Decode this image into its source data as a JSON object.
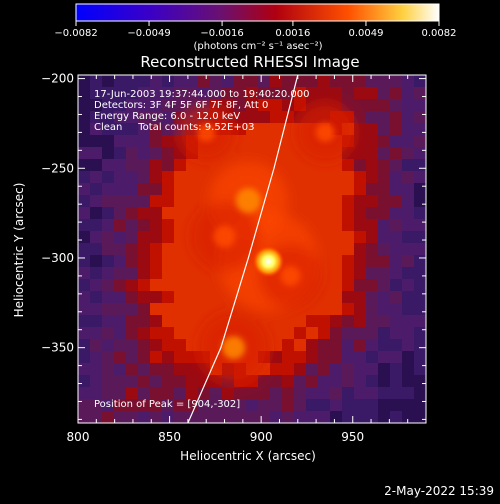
{
  "chart_data": {
    "type": "heatmap",
    "title": "Reconstructed RHESSI Image",
    "xlabel": "Heliocentric X (arcsec)",
    "ylabel": "Heliocentric Y (arcsec)",
    "xlim": [
      800,
      990
    ],
    "ylim": [
      -392,
      -198
    ],
    "x_ticks": [
      800,
      850,
      900,
      950
    ],
    "x_tick_labels": [
      "800",
      "850",
      "900",
      "950"
    ],
    "y_ticks": [
      -200,
      -250,
      -300,
      -350
    ],
    "y_tick_labels": [
      "−200",
      "−250",
      "−300",
      "−350"
    ],
    "colorbar": {
      "range": [
        -0.0082,
        0.0082
      ],
      "ticks": [
        -0.0082,
        -0.0049,
        -0.0016,
        0.0016,
        0.0049,
        0.0082
      ],
      "tick_labels": [
        "−0.0082",
        "−0.0049",
        "−0.0016",
        "0.0016",
        "0.0049",
        "0.0082"
      ],
      "units": "(photons cm⁻² s⁻¹ asec⁻²)",
      "colormap": "blue-purple-red-orange-yellow-white"
    },
    "annotations": [
      "17-Jun-2003 19:37:44.000 to 19:40:20.000",
      "Detectors: 3F 4F 5F 6F 7F 8F, Att 0",
      "Energy Range: 6.0 - 12.0 keV",
      "Clean     Total counts: 9.52E+03"
    ],
    "peak_label": "Position of Peak = [904,-302]",
    "peak": {
      "x": 904,
      "y": -302
    },
    "limb_curve": [
      [
        860,
        -392
      ],
      [
        878,
        -350
      ],
      [
        893,
        -300
      ],
      [
        907,
        -250
      ],
      [
        920,
        -198
      ]
    ],
    "bright_features": [
      {
        "x": 904,
        "y": -302,
        "level": 1.0
      },
      {
        "x": 893,
        "y": -268,
        "level": 0.65
      },
      {
        "x": 885,
        "y": -350,
        "level": 0.55
      },
      {
        "x": 880,
        "y": -288,
        "level": 0.5
      },
      {
        "x": 916,
        "y": -310,
        "level": 0.4
      },
      {
        "x": 935,
        "y": -230,
        "level": 0.35
      },
      {
        "x": 870,
        "y": -230,
        "level": 0.3
      }
    ]
  },
  "footer": {
    "timestamp": "2-May-2022 15:39"
  },
  "colors": {
    "background": "#000000",
    "limb": "#ffffff",
    "peak": "#ffff80"
  }
}
